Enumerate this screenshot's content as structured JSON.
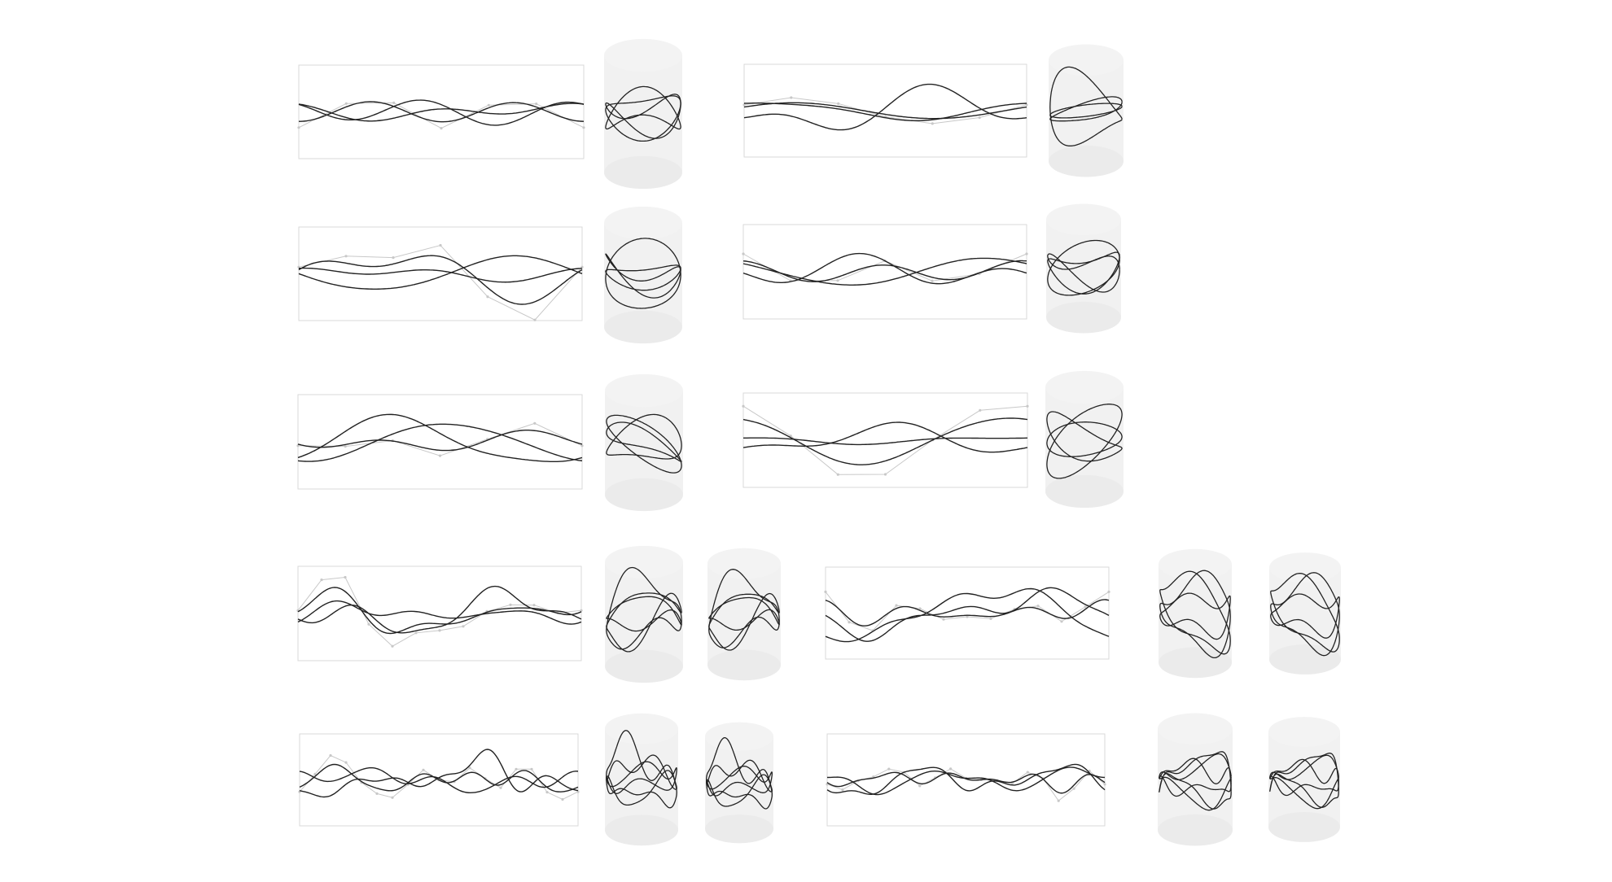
{
  "figure": {
    "background": "#ffffff",
    "curve_color": "#222222",
    "control_color": "#c8c8c8",
    "box_color": "#d9d9d9",
    "cylinder_color": "#ebebeb"
  },
  "panels": [
    {
      "name": "r1-left",
      "curves": 3,
      "harmonic": 1,
      "cylinders": 1
    },
    {
      "name": "r1-right",
      "curves": 3,
      "harmonic": 1,
      "cylinders": 1
    },
    {
      "name": "r2-left",
      "curves": 3,
      "harmonic": 1,
      "cylinders": 1
    },
    {
      "name": "r2-right",
      "curves": 3,
      "harmonic": 1,
      "cylinders": 1
    },
    {
      "name": "r3-left",
      "curves": 3,
      "harmonic": 1,
      "cylinders": 1
    },
    {
      "name": "r3-right",
      "curves": 3,
      "harmonic": 1,
      "cylinders": 1
    },
    {
      "name": "r4-left",
      "curves": 3,
      "harmonic": 2,
      "cylinders": 2
    },
    {
      "name": "r4-right",
      "curves": 3,
      "harmonic": 2,
      "cylinders": 2
    },
    {
      "name": "r5-left",
      "curves": 3,
      "harmonic": 3,
      "cylinders": 2
    },
    {
      "name": "r5-right",
      "curves": 3,
      "harmonic": 3,
      "cylinders": 2
    }
  ]
}
